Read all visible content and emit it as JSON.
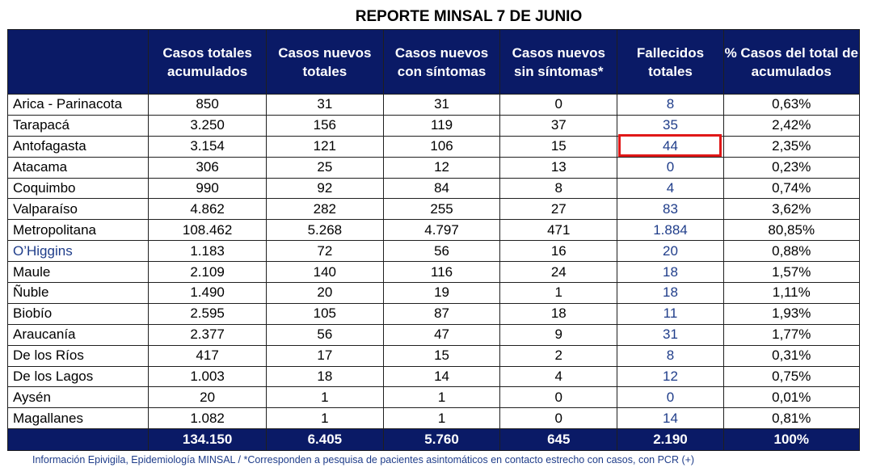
{
  "title": "REPORTE MINSAL 7 DE JUNIO",
  "columns": [
    "",
    "Casos totales acumulados",
    "Casos nuevos totales",
    "Casos nuevos con síntomas",
    "Casos nuevos sin síntomas*",
    "Fallecidos totales",
    "% Casos del total de acumulados"
  ],
  "rows": [
    {
      "region": "Arica - Parinacota",
      "values": [
        "850",
        "31",
        "31",
        "0",
        "8",
        "0,63%"
      ]
    },
    {
      "region": "Tarapacá",
      "values": [
        "3.250",
        "156",
        "119",
        "37",
        "35",
        "2,42%"
      ]
    },
    {
      "region": "Antofagasta",
      "values": [
        "3.154",
        "121",
        "106",
        "15",
        "44",
        "2,35%"
      ]
    },
    {
      "region": "Atacama",
      "values": [
        "306",
        "25",
        "12",
        "13",
        "0",
        "0,23%"
      ]
    },
    {
      "region": "Coquimbo",
      "values": [
        "990",
        "92",
        "84",
        "8",
        "4",
        "0,74%"
      ]
    },
    {
      "region": "Valparaíso",
      "values": [
        "4.862",
        "282",
        "255",
        "27",
        "83",
        "3,62%"
      ]
    },
    {
      "region": "Metropolitana",
      "values": [
        "108.462",
        "5.268",
        "4.797",
        "471",
        "1.884",
        "80,85%"
      ]
    },
    {
      "region": "O’Higgins",
      "values": [
        "1.183",
        "72",
        "56",
        "16",
        "20",
        "0,88%"
      ]
    },
    {
      "region": "Maule",
      "values": [
        "2.109",
        "140",
        "116",
        "24",
        "18",
        "1,57%"
      ]
    },
    {
      "region": "Ñuble",
      "values": [
        "1.490",
        "20",
        "19",
        "1",
        "18",
        "1,11%"
      ]
    },
    {
      "region": "Biobío",
      "values": [
        "2.595",
        "105",
        "87",
        "18",
        "11",
        "1,93%"
      ]
    },
    {
      "region": "Araucanía",
      "values": [
        "2.377",
        "56",
        "47",
        "9",
        "31",
        "1,77%"
      ]
    },
    {
      "region": "De los Ríos",
      "values": [
        "417",
        "17",
        "15",
        "2",
        "8",
        "0,31%"
      ]
    },
    {
      "region": "De los Lagos",
      "values": [
        "1.003",
        "18",
        "14",
        "4",
        "12",
        "0,75%"
      ]
    },
    {
      "region": "Aysén",
      "values": [
        "20",
        "1",
        "1",
        "0",
        "0",
        "0,01%"
      ]
    },
    {
      "region": "Magallanes",
      "values": [
        "1.082",
        "1",
        "1",
        "0",
        "14",
        "0,81%"
      ]
    }
  ],
  "totals": [
    "134.150",
    "6.405",
    "5.760",
    "645",
    "2.190",
    "100%"
  ],
  "highlighted_cell": {
    "region": "Antofagasta",
    "column": "Fallecidos totales",
    "value": "44",
    "color": "#e01818"
  },
  "colors": {
    "header_bg": "#0a1a66",
    "header_text": "#ffffff",
    "region_blue": "#1f3d8a"
  },
  "footnote": "Información Epivigila, Epidemiología MINSAL / *Corresponden a pesquisa de pacientes asintomáticos en contacto estrecho con casos, con PCR (+)"
}
